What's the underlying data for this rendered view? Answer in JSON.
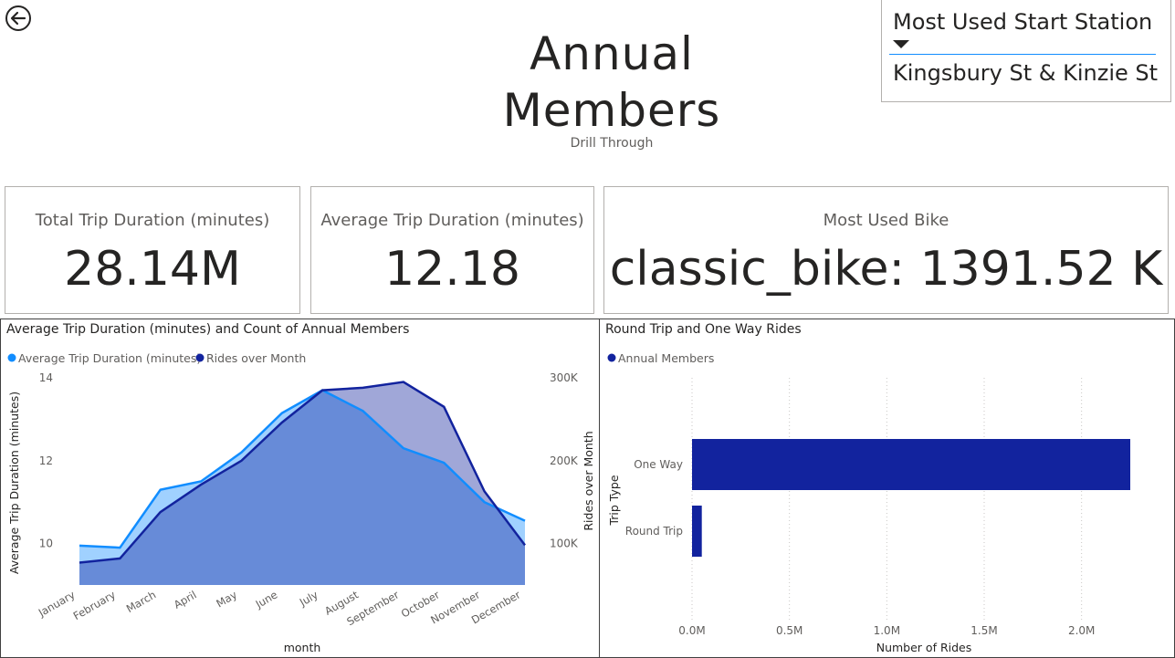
{
  "page": {
    "title_line1": "Annual",
    "title_line2": "Members",
    "subtitle": "Drill Through"
  },
  "icons": {
    "back": "back-arrow-icon",
    "dropdown": "caret-down-icon"
  },
  "slicer": {
    "header": "Most Used Start Station",
    "selected": "Kingsbury St & Kinzie St"
  },
  "cards": [
    {
      "label": "Total Trip Duration (minutes)",
      "value": "28.14M"
    },
    {
      "label": "Average Trip Duration (minutes)",
      "value": "12.18"
    },
    {
      "label": "Most Used Bike",
      "value": "classic_bike: 1391.52 K"
    }
  ],
  "colors": {
    "avg_duration": "#118dff",
    "rides": "#12239e",
    "border": "#b3b0ad",
    "text": "#252423",
    "muted": "#605e5c"
  },
  "chart_data": [
    {
      "type": "area",
      "title": "Average Trip Duration (minutes) and Count of Annual Members",
      "xlabel": "month",
      "categories": [
        "January",
        "February",
        "March",
        "April",
        "May",
        "June",
        "July",
        "August",
        "September",
        "October",
        "November",
        "December"
      ],
      "series": [
        {
          "name": "Average Trip Duration (minutes)",
          "axis": "left",
          "ylabel": "Average Trip Duration (minutes)",
          "values": [
            9.95,
            9.9,
            11.3,
            11.5,
            12.2,
            13.15,
            13.7,
            13.2,
            12.3,
            11.95,
            11.0,
            10.55
          ]
        },
        {
          "name": "Rides over Month",
          "axis": "right",
          "ylabel": "Rides over Month",
          "values": [
            77000,
            82000,
            138000,
            171000,
            200000,
            246000,
            285000,
            288000,
            295000,
            265000,
            163000,
            98000
          ]
        }
      ],
      "y_left": {
        "ticks": [
          10,
          12,
          14
        ],
        "tick_labels": [
          "10",
          "12",
          "14"
        ],
        "range": [
          9.0,
          14.0
        ]
      },
      "y_right": {
        "ticks": [
          100000,
          200000,
          300000
        ],
        "tick_labels": [
          "100K",
          "200K",
          "300K"
        ],
        "range": [
          50000,
          300000
        ]
      },
      "legend_position": "top-left",
      "grid": false
    },
    {
      "type": "bar",
      "orientation": "horizontal",
      "title": "Round Trip and One Way Rides",
      "legend": "Annual Members",
      "ylabel": "Trip Type",
      "xlabel": "Number of Rides",
      "categories": [
        "One Way",
        "Round Trip"
      ],
      "values": [
        2250000,
        50000
      ],
      "x_ticks": [
        0,
        500000,
        1000000,
        1500000,
        2000000
      ],
      "x_tick_labels": [
        "0.0M",
        "0.5M",
        "1.0M",
        "1.5M",
        "2.0M"
      ],
      "xlim": [
        0,
        2400000
      ],
      "legend_position": "top-left",
      "grid": true
    }
  ]
}
